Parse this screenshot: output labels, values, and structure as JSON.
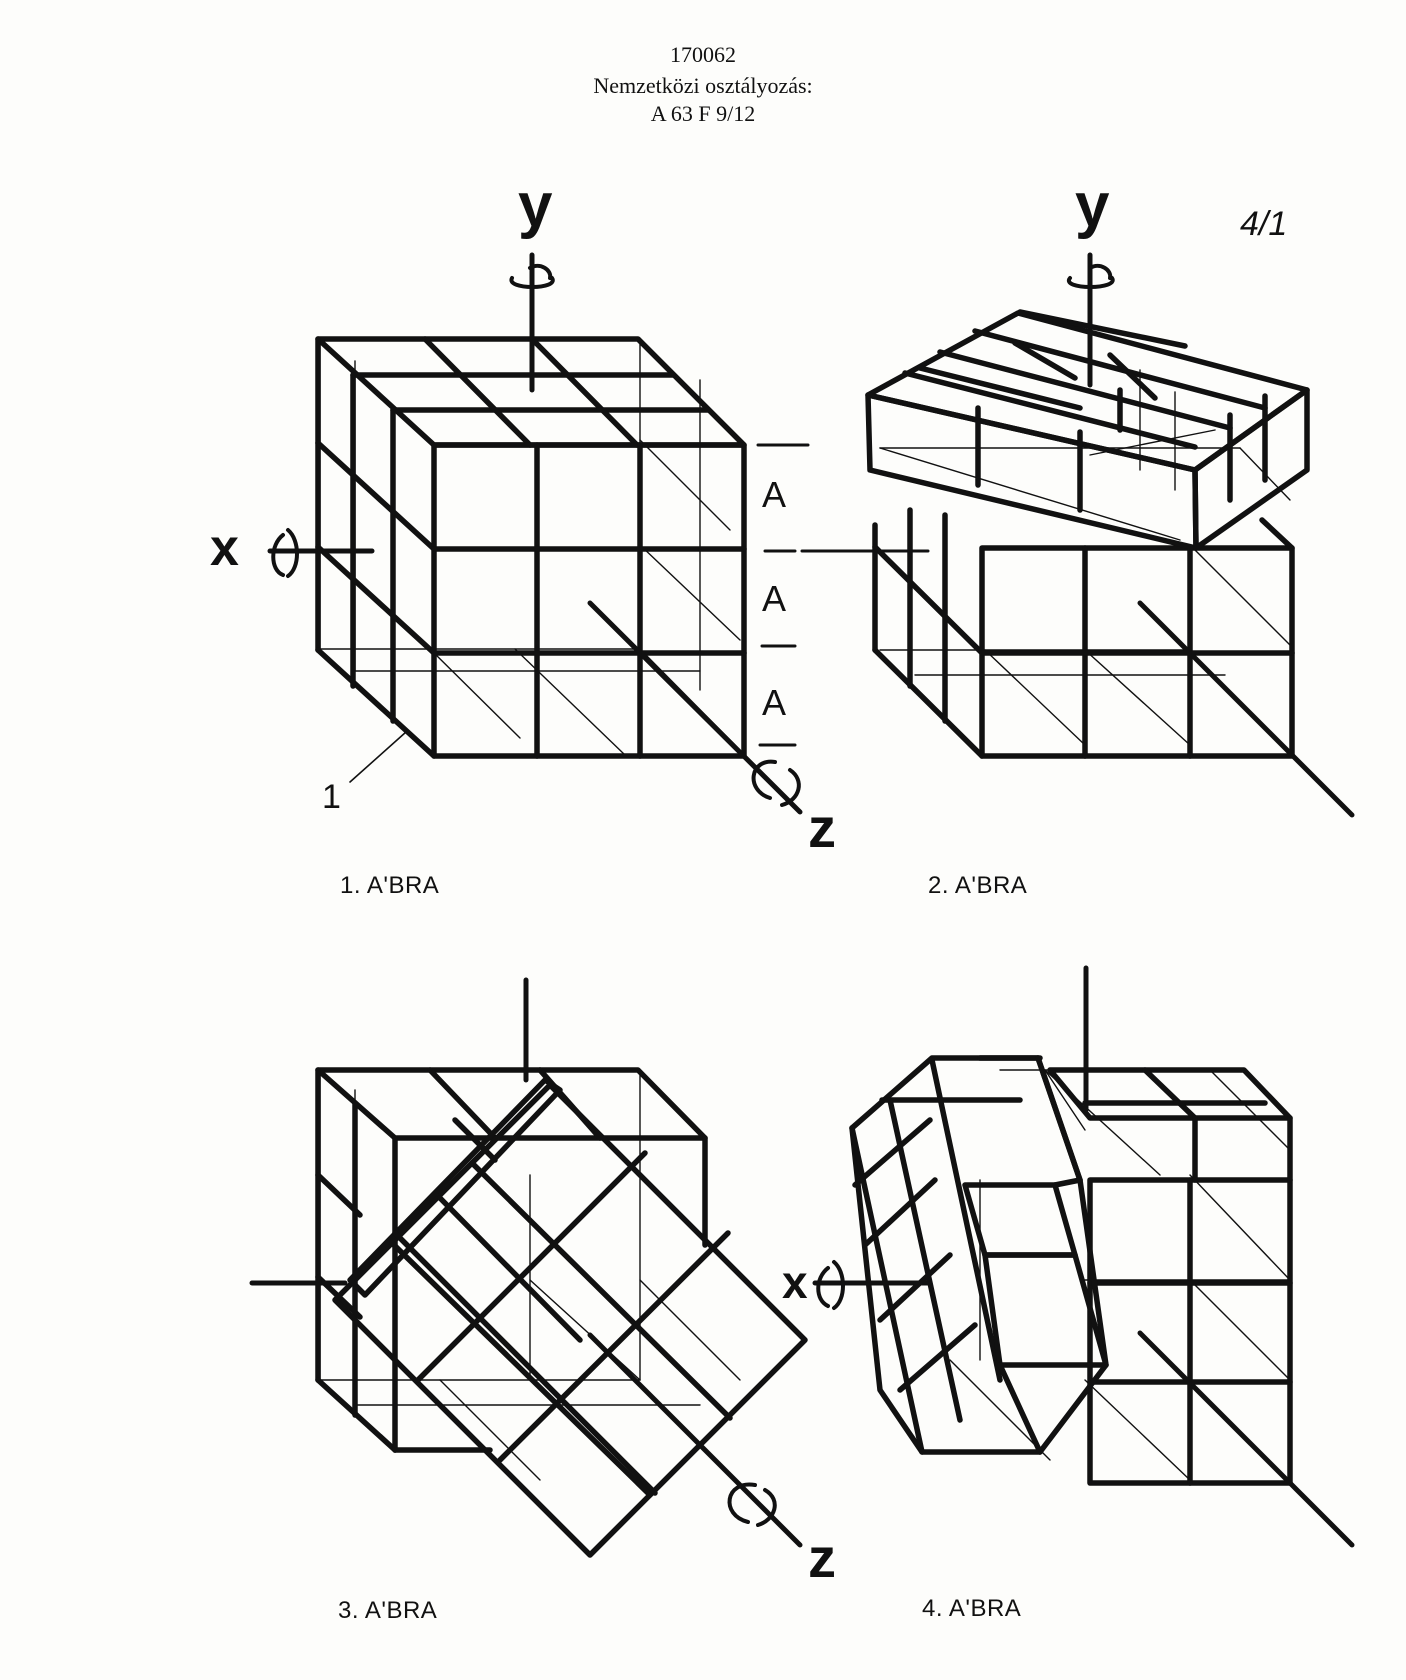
{
  "header": {
    "number": "170062",
    "classification_label": "Nemzetközi osztályozás:",
    "classification_code": "A 63 F 9/12"
  },
  "page_mark": "4/1",
  "figures": [
    {
      "label": "1. A'BRA",
      "axes": [
        "y",
        "x",
        "z"
      ],
      "side_labels": [
        "A",
        "A",
        "A"
      ],
      "ref_number": "1"
    },
    {
      "label": "2. A'BRA",
      "axes": [
        "y"
      ]
    },
    {
      "label": "3. A'BRA",
      "axes": [
        "z"
      ]
    },
    {
      "label": "4. A'BRA",
      "axes": [
        "x"
      ]
    }
  ]
}
